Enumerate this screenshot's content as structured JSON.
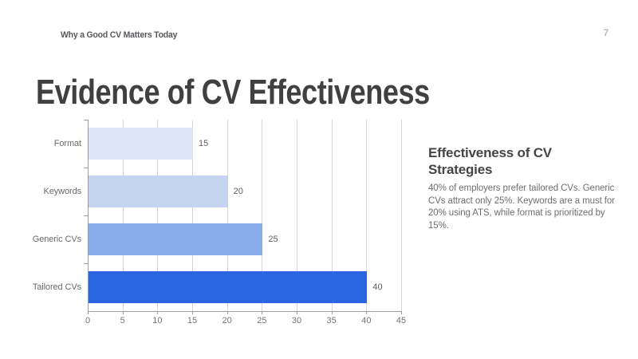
{
  "header": {
    "breadcrumb": "Why a Good CV Matters Today",
    "page_number": "7"
  },
  "title": "Evidence of CV Effectiveness",
  "note": {
    "heading": "Effectiveness of CV Strategies",
    "body": "40% of employers prefer tailored CVs. Generic CVs attract only 25%. Keywords are a must for 20% using ATS, while format is prioritized by 15%."
  },
  "chart_data": {
    "type": "bar",
    "orientation": "horizontal",
    "title": "",
    "xlabel": "",
    "ylabel": "",
    "categories": [
      "Format",
      "Keywords",
      "Generic CVs",
      "Tailored CVs"
    ],
    "values": [
      15,
      20,
      25,
      40
    ],
    "value_labels": [
      "15",
      "20",
      "25",
      "40"
    ],
    "bar_colors": [
      "#dde4f4",
      "#c6d3f0",
      "#8aabe9",
      "#2a66e2"
    ],
    "xlim": [
      0,
      45
    ],
    "xticks": [
      0,
      5,
      10,
      15,
      20,
      25,
      30,
      35,
      40,
      45
    ],
    "grid": true,
    "legend": false,
    "colors": {
      "axis": "#9e9e9e",
      "gridline": "#d8d8d8",
      "tick_label": "#757575",
      "value_label": "#5f5f5f",
      "category_label": "#6a6a6a",
      "title_text": "#3e4041",
      "breadcrumb_text": "#58585c",
      "note_heading": "#454545",
      "note_body": "#6e6e6e"
    }
  }
}
